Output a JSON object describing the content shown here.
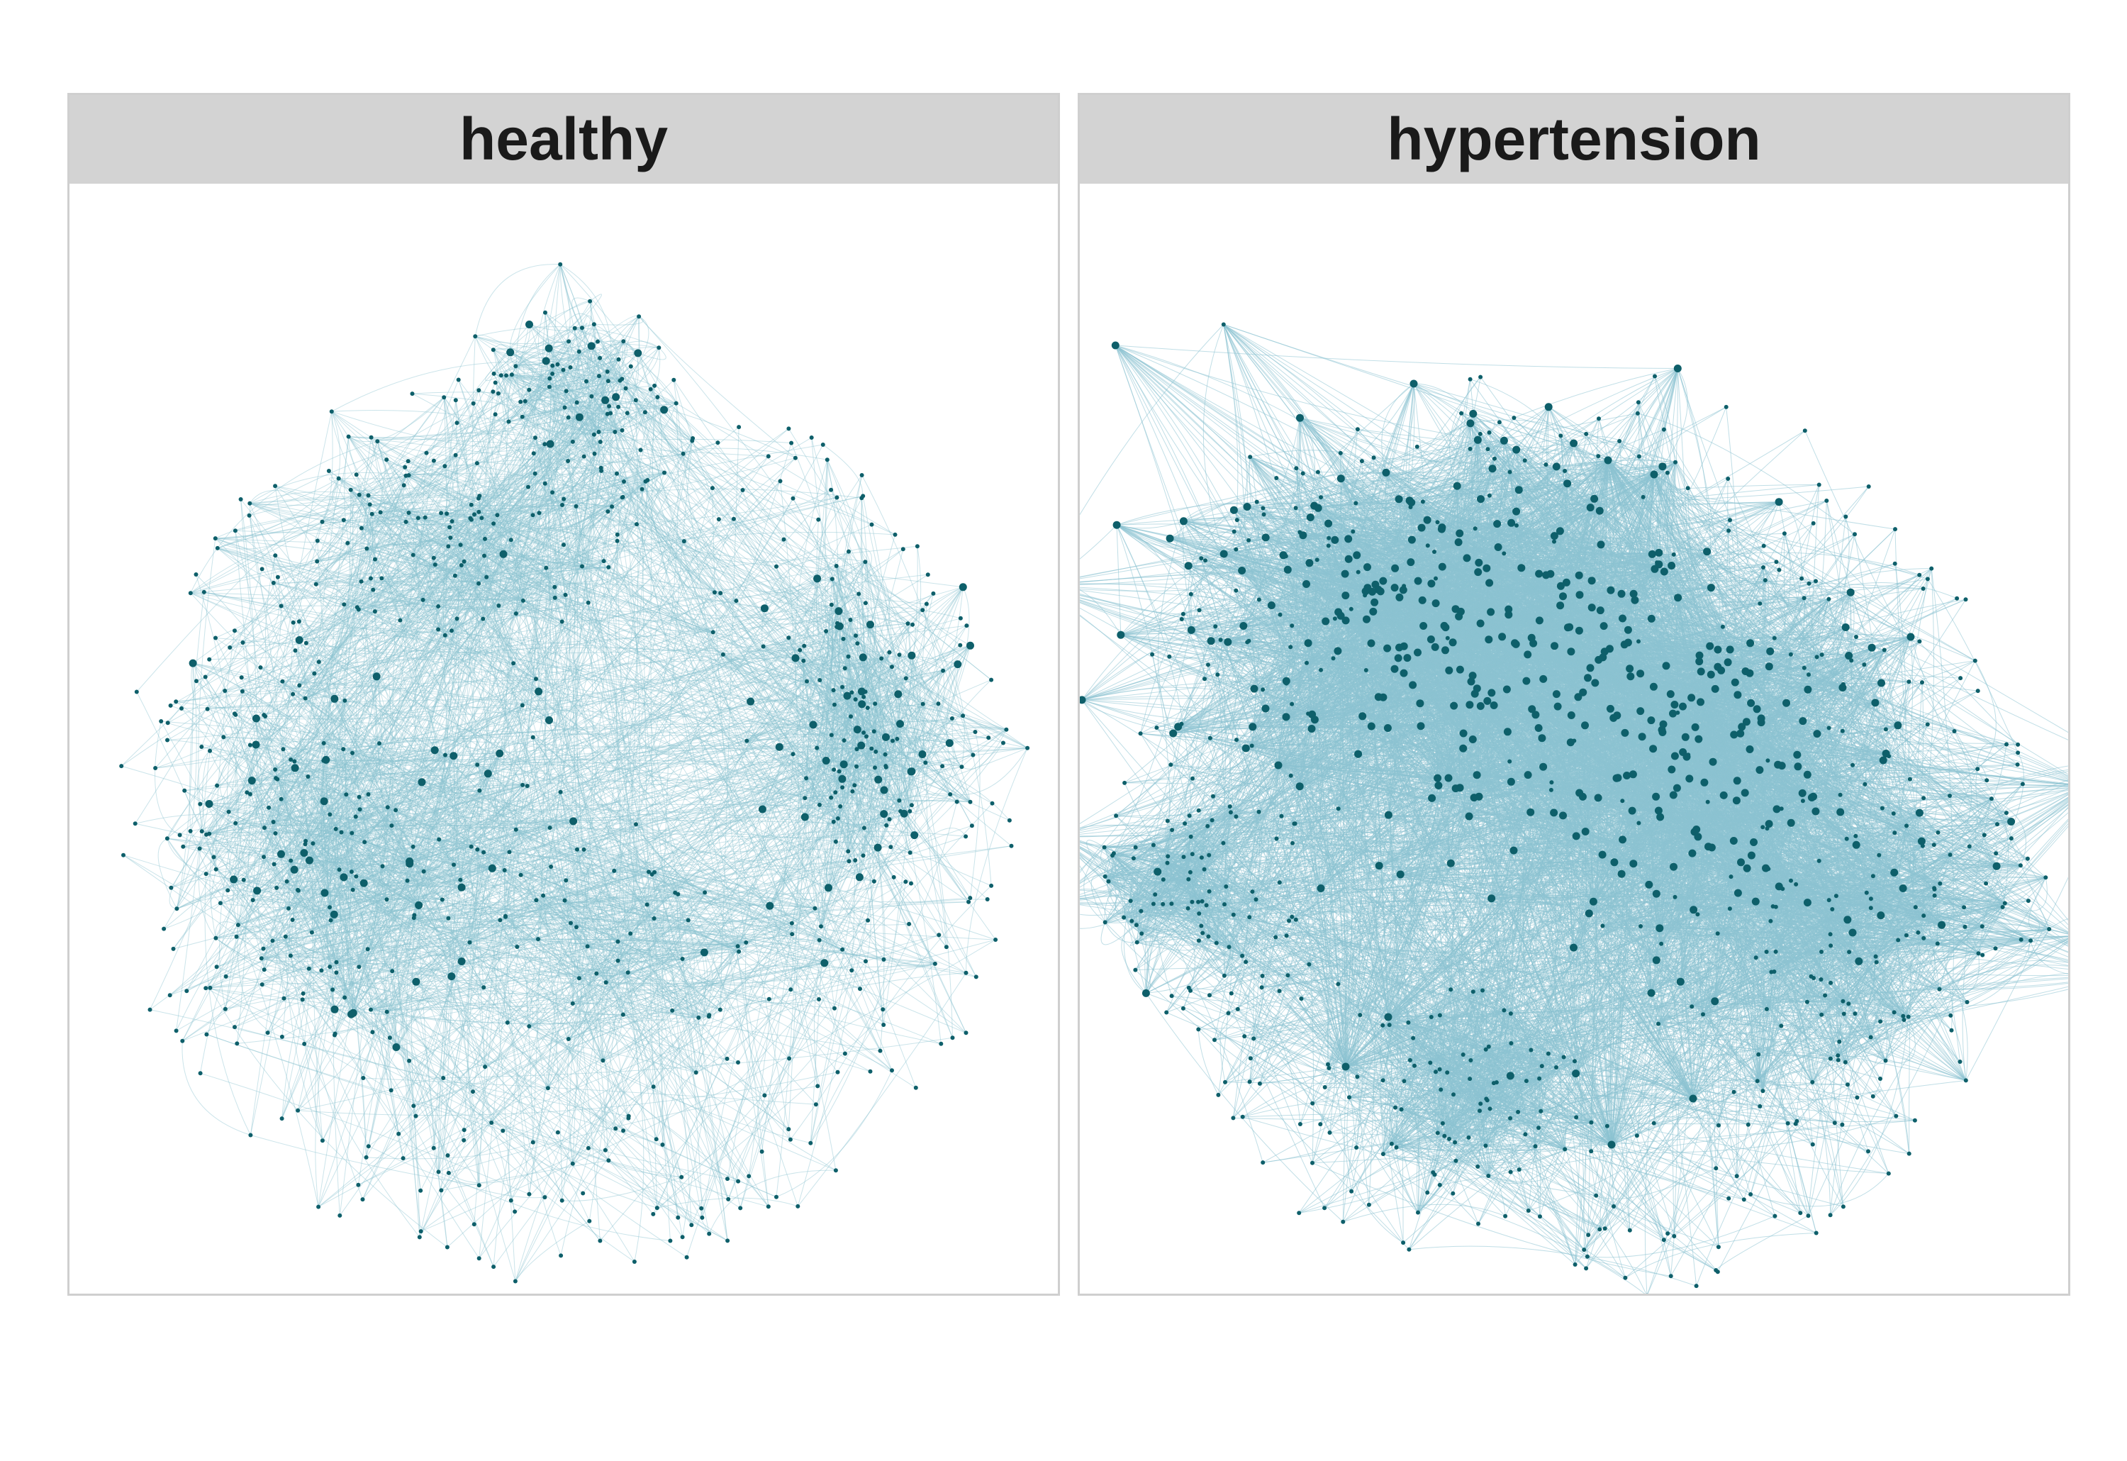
{
  "panels": [
    {
      "title": "healthy"
    },
    {
      "title": "hypertension"
    }
  ],
  "colors": {
    "node": "#0e5f6a",
    "edge": "#8cc3d1",
    "strip": "#d3d3d3",
    "border": "#cfcfcf"
  }
}
